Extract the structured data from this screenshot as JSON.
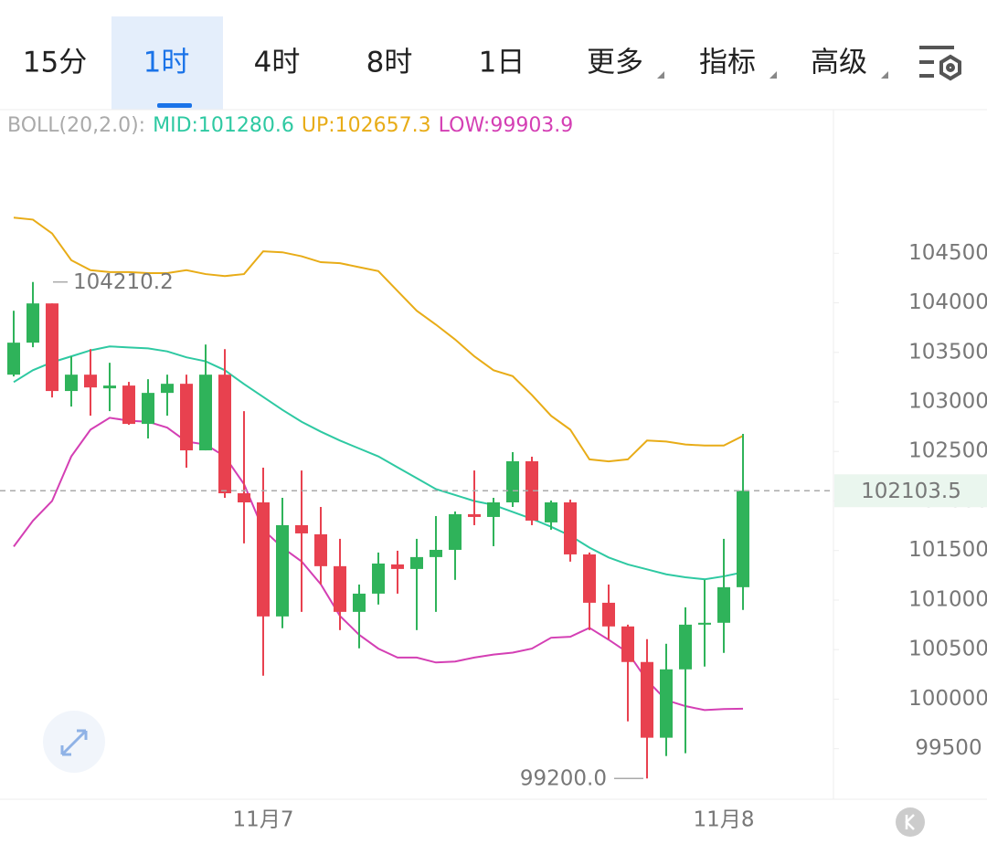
{
  "tabs": [
    "15分",
    "1时",
    "4时",
    "8时",
    "1日",
    "更多",
    "指标",
    "高级"
  ],
  "selected_tab": 1,
  "chart_data": {
    "type": "candlestick",
    "indicator_label": "BOLL(20,2.0):",
    "categories": [
      null,
      null,
      null,
      null,
      null,
      null,
      null,
      null,
      null,
      null,
      null,
      null,
      null,
      "11月7",
      null,
      null,
      null,
      null,
      null,
      null,
      null,
      null,
      null,
      null,
      null,
      null,
      null,
      null,
      null,
      null,
      null,
      null,
      null,
      null,
      null,
      null,
      null,
      "11月8",
      null
    ],
    "open": [
      103275,
      103598,
      103994,
      103110,
      103275,
      103137,
      103165,
      102778,
      103091,
      103183,
      102511,
      103275,
      102078,
      101986,
      100835,
      101756,
      101664,
      101342,
      100881,
      101065,
      101360,
      101314,
      101434,
      101507,
      101867,
      101839,
      101986,
      102401,
      101784,
      101986,
      101461,
      100973,
      100734,
      100375,
      99611,
      100301,
      100752,
      100771,
      101130
    ],
    "high": [
      103920,
      104210.2,
      103994,
      103459,
      103533,
      103395,
      103202,
      103229,
      103275,
      103275,
      103579,
      103533,
      102907,
      102336,
      102032,
      102308,
      101940,
      101618,
      101157,
      101480,
      101498,
      101618,
      101848,
      101894,
      102308,
      102032,
      102493,
      102447,
      102005,
      102014,
      101480,
      101157,
      100752,
      100605,
      100559,
      100927,
      101204,
      101618,
      102677
    ],
    "low": [
      103257,
      103552,
      103045,
      102953,
      102861,
      102907,
      102769,
      102631,
      102861,
      102336,
      102511,
      102032,
      101572,
      100237,
      100716,
      100881,
      101157,
      100697,
      100513,
      100955,
      101065,
      100697,
      100881,
      101204,
      101756,
      101544,
      101940,
      101756,
      101710,
      101388,
      100697,
      100605,
      99776,
      99200,
      99426,
      99454,
      100329,
      100467,
      100900
    ],
    "close": [
      103598,
      103994,
      103110,
      103275,
      103146,
      103165,
      102778,
      103091,
      103183,
      102511,
      103275,
      102078,
      101986,
      100835,
      101756,
      101673,
      101342,
      100881,
      101065,
      101369,
      101314,
      101434,
      101507,
      101867,
      101839,
      101986,
      102401,
      101802,
      101986,
      101461,
      100973,
      100734,
      100375,
      99611,
      100301,
      100752,
      100771,
      101130,
      102103.5
    ],
    "up_color": "#2fb35a",
    "down_color": "#e8414f",
    "series": [
      {
        "name": "MID:101280.6",
        "color": "#2ec9a2",
        "values": [
          103200,
          103320,
          103400,
          103460,
          103520,
          103560,
          103550,
          103540,
          103510,
          103450,
          103410,
          103320,
          103180,
          103050,
          102920,
          102800,
          102700,
          102610,
          102530,
          102450,
          102340,
          102230,
          102120,
          102060,
          102000,
          101960,
          101890,
          101820,
          101740,
          101650,
          101530,
          101430,
          101360,
          101310,
          101260,
          101230,
          101210,
          101240,
          101280.6
        ]
      },
      {
        "name": "UP:102657.3",
        "color": "#e8ac17",
        "values": [
          104860,
          104840,
          104700,
          104430,
          104330,
          104310,
          104310,
          104300,
          104300,
          104330,
          104290,
          104270,
          104290,
          104520,
          104510,
          104470,
          104410,
          104400,
          104360,
          104320,
          104120,
          103920,
          103780,
          103630,
          103460,
          103320,
          103260,
          103070,
          102860,
          102720,
          102420,
          102400,
          102420,
          102610,
          102600,
          102570,
          102560,
          102560,
          102657.3
        ]
      },
      {
        "name": "LOW:99903.9",
        "color": "#d43fb4",
        "values": [
          101540,
          101800,
          102000,
          102450,
          102720,
          102840,
          102810,
          102800,
          102740,
          102600,
          102570,
          102450,
          102170,
          101710,
          101530,
          101390,
          101160,
          100840,
          100650,
          100510,
          100420,
          100420,
          100370,
          100380,
          100420,
          100450,
          100470,
          100510,
          100620,
          100630,
          100720,
          100600,
          100470,
          100190,
          99990,
          99930,
          99890,
          99900,
          99903.9
        ]
      }
    ],
    "max_label": "104210.2",
    "min_label": "99200.0",
    "last_price_label": "102103.5",
    "ylim": [
      98990,
      105950
    ],
    "yticks": [
      99500,
      100000,
      100500,
      101000,
      101500,
      102000,
      102500,
      103000,
      103500,
      104000,
      104500
    ]
  }
}
